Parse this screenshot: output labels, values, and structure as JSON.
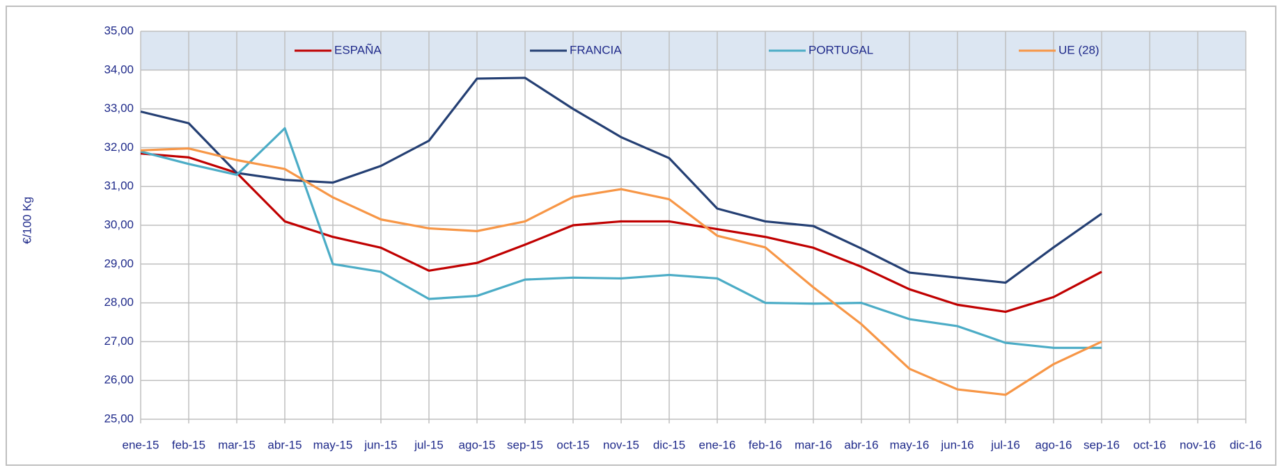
{
  "chart_data": {
    "type": "line",
    "y_label": "€/100 Kg",
    "categories": [
      "ene-15",
      "feb-15",
      "mar-15",
      "abr-15",
      "may-15",
      "jun-15",
      "jul-15",
      "ago-15",
      "sep-15",
      "oct-15",
      "nov-15",
      "dic-15",
      "ene-16",
      "feb-16",
      "mar-16",
      "abr-16",
      "may-16",
      "jun-16",
      "jul-16",
      "ago-16",
      "sep-16",
      "oct-16",
      "nov-16",
      "dic-16"
    ],
    "series": [
      {
        "name": "ESPAÑA",
        "color": "#c00000",
        "values": [
          31.85,
          31.75,
          31.35,
          30.1,
          29.7,
          29.42,
          28.83,
          29.03,
          29.5,
          30.0,
          30.1,
          30.1,
          29.9,
          29.7,
          29.42,
          28.93,
          28.35,
          27.95,
          27.77,
          28.15,
          28.8,
          null,
          null,
          null
        ]
      },
      {
        "name": "FRANCIA",
        "color": "#243f73",
        "values": [
          32.93,
          32.63,
          31.35,
          31.17,
          31.1,
          31.53,
          32.18,
          33.78,
          33.8,
          33.0,
          32.27,
          31.73,
          30.43,
          30.1,
          29.98,
          29.4,
          28.78,
          28.65,
          28.52,
          29.43,
          30.3,
          null,
          null,
          null
        ]
      },
      {
        "name": "PORTUGAL",
        "color": "#4bacc6",
        "values": [
          31.9,
          31.58,
          31.3,
          32.5,
          29.0,
          28.8,
          28.1,
          28.18,
          28.6,
          28.65,
          28.63,
          28.72,
          28.63,
          28.0,
          27.98,
          28.0,
          27.58,
          27.4,
          26.97,
          26.84,
          26.84,
          null,
          null,
          null
        ]
      },
      {
        "name": "UE (28)",
        "color": "#f79646",
        "values": [
          31.93,
          31.98,
          31.68,
          31.45,
          30.72,
          30.15,
          29.92,
          29.85,
          30.1,
          30.73,
          30.93,
          30.67,
          29.73,
          29.43,
          28.4,
          27.45,
          26.3,
          25.77,
          25.63,
          26.42,
          27.0,
          null,
          null,
          null
        ]
      }
    ],
    "ylim": [
      25,
      35
    ],
    "yticks": [
      {
        "value": 25,
        "label": "25,00"
      },
      {
        "value": 26,
        "label": "26,00"
      },
      {
        "value": 27,
        "label": "27,00"
      },
      {
        "value": 28,
        "label": "28,00"
      },
      {
        "value": 29,
        "label": "29,00"
      },
      {
        "value": 30,
        "label": "30,00"
      },
      {
        "value": 31,
        "label": "31,00"
      },
      {
        "value": 32,
        "label": "32,00"
      },
      {
        "value": 33,
        "label": "33,00"
      },
      {
        "value": 34,
        "label": "34,00"
      },
      {
        "value": 35,
        "label": "35,00"
      }
    ],
    "grid": true,
    "legend": "top"
  }
}
